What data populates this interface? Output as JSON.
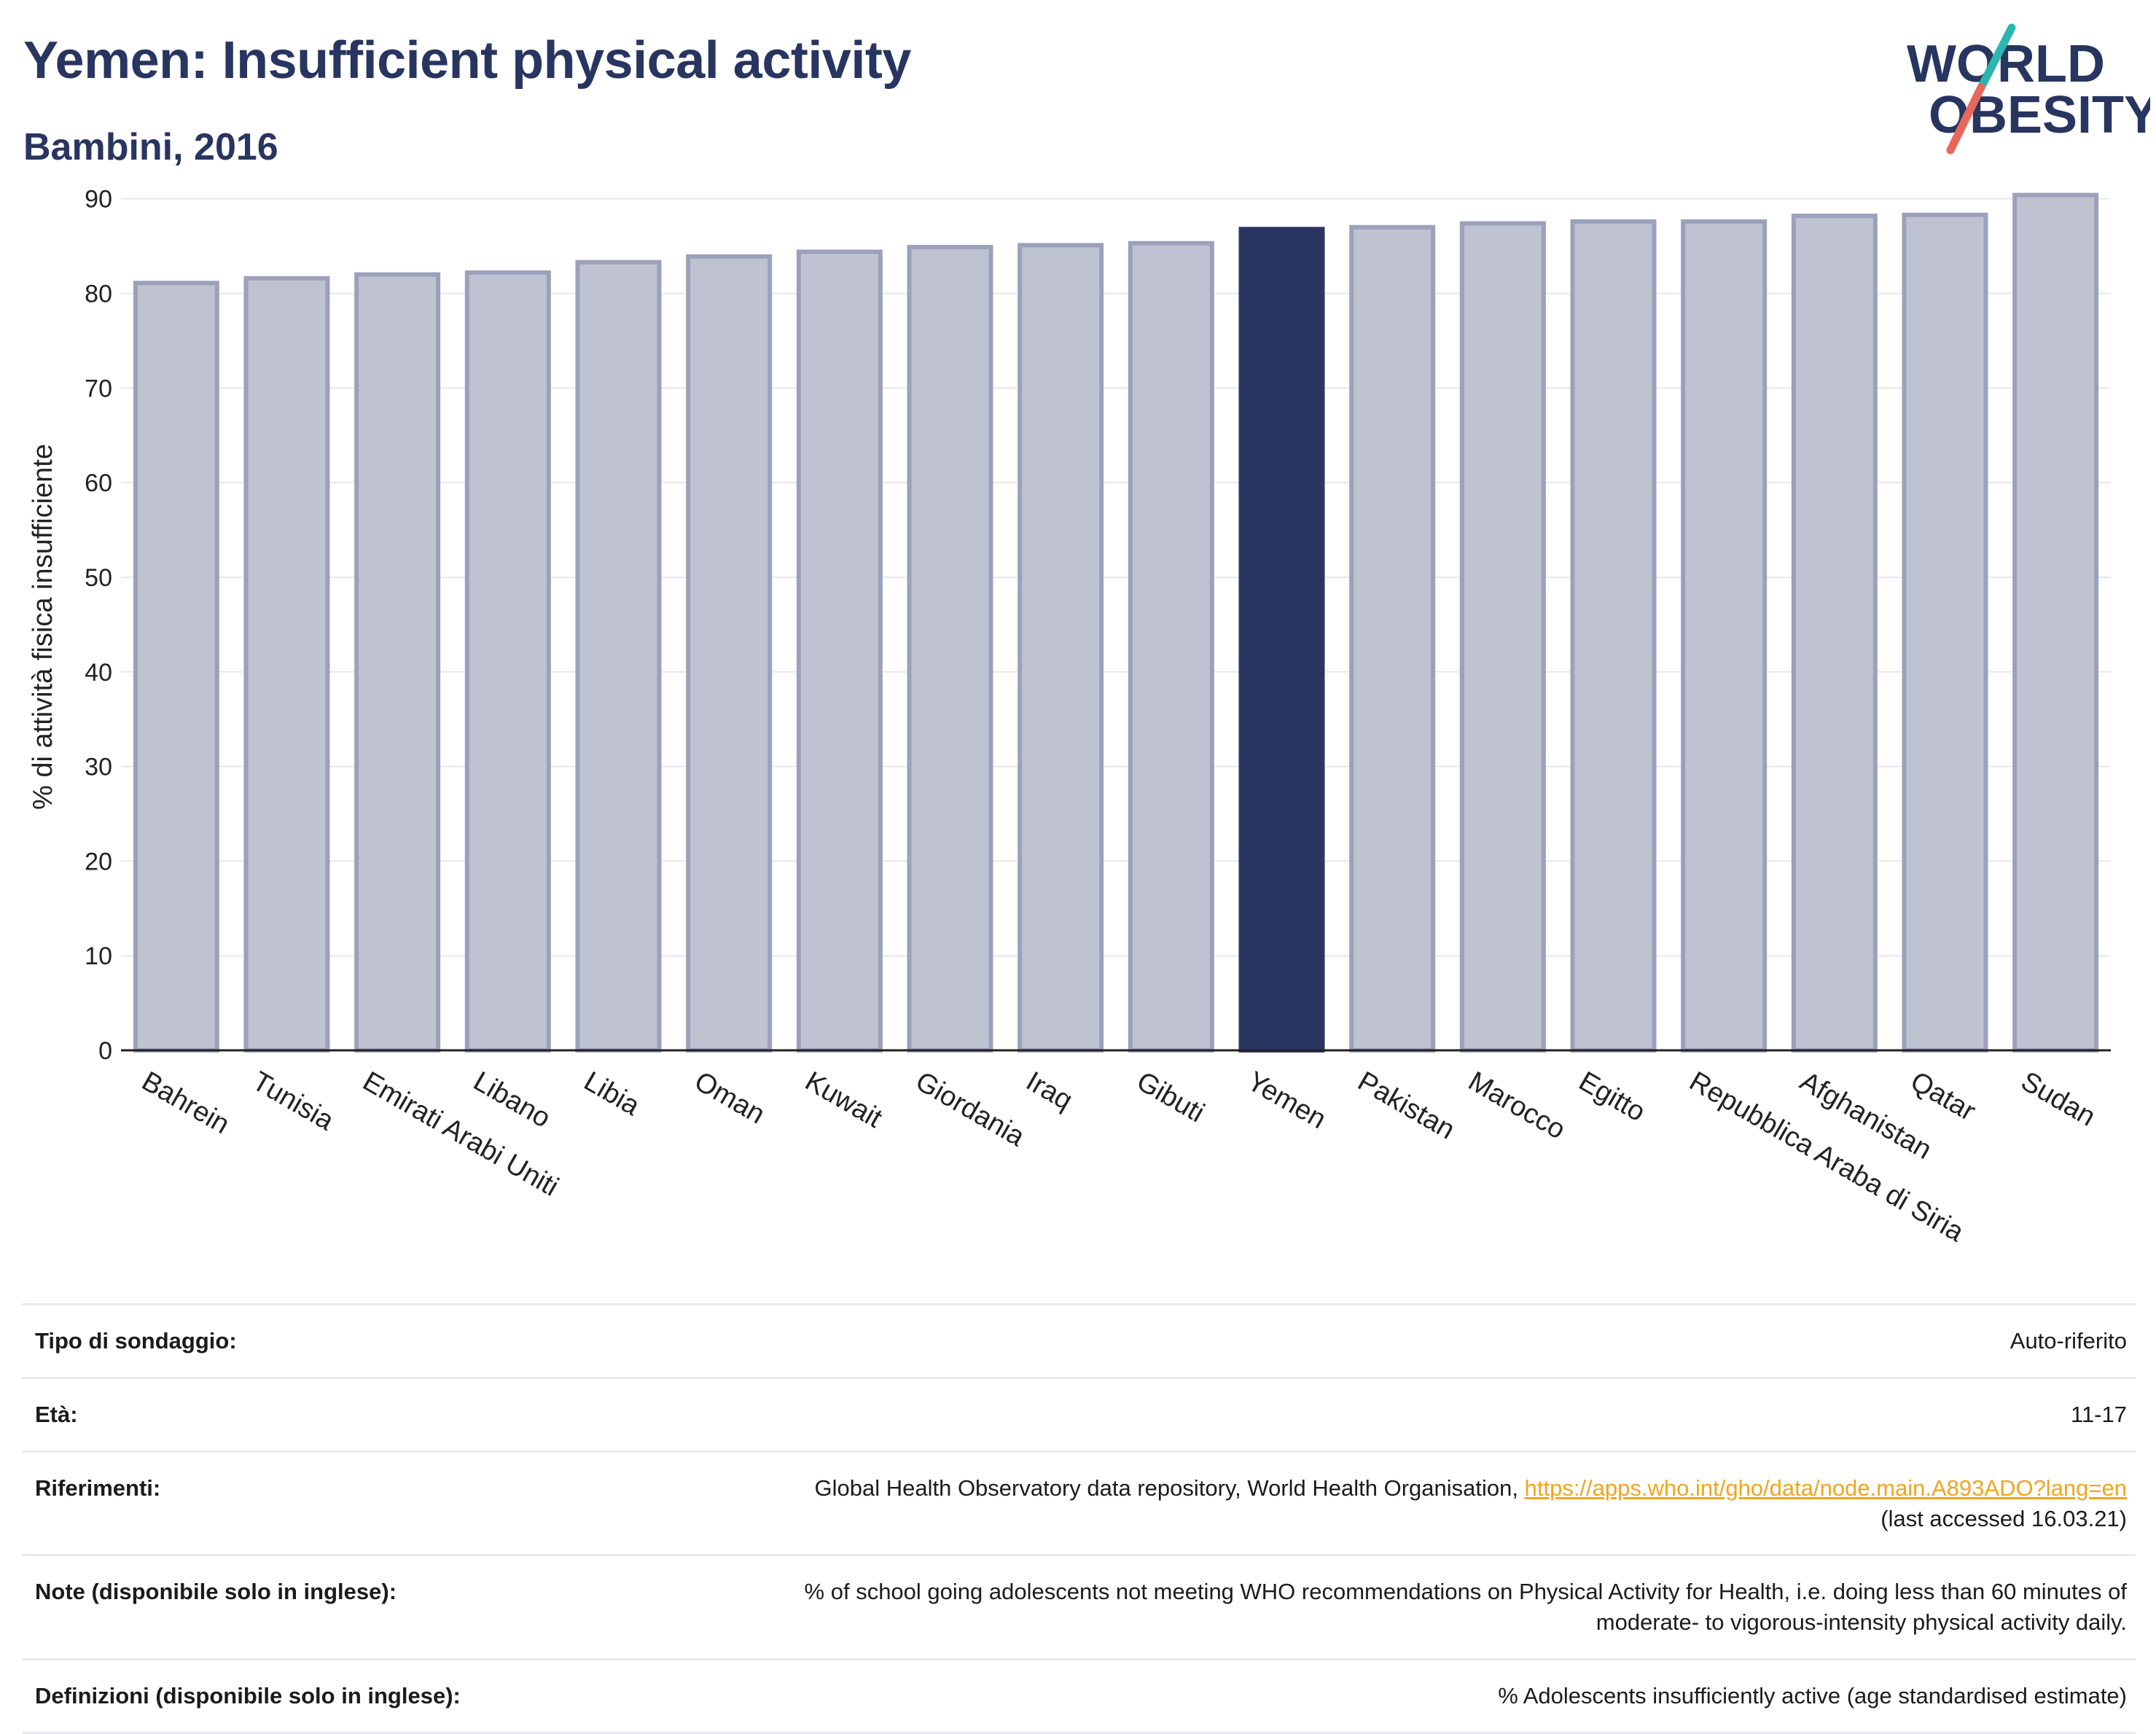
{
  "title": "Yemen: Insufficient physical activity",
  "subtitle": "Bambini, 2016",
  "logo": {
    "line1": "WORLD",
    "line2": "OBESITY",
    "colors": {
      "text": "#283560",
      "slash_top": "#2bb6b0",
      "slash_bottom": "#e8675a"
    }
  },
  "colors": {
    "bar": "#bfc2d0",
    "bar_border": "#9ba1ba",
    "highlight": "#2a3561",
    "grid": "#e6e8ee",
    "axis": "#222222",
    "text": "#283560"
  },
  "chart_data": {
    "type": "bar",
    "ylabel": "% di attività fisica insufficiente",
    "ylim": [
      0,
      90
    ],
    "yticks": [
      0,
      10,
      20,
      30,
      40,
      50,
      60,
      70,
      80,
      90
    ],
    "grid": true,
    "highlight": "Yemen",
    "categories": [
      "Bahrein",
      "Tunisia",
      "Emirati Arabi Uniti",
      "Libano",
      "Libia",
      "Oman",
      "Kuwait",
      "Giordania",
      "Iraq",
      "Gibuti",
      "Yemen",
      "Pakistan",
      "Marocco",
      "Egitto",
      "Repubblica Araba di Siria",
      "Afghanistan",
      "Qatar",
      "Sudan"
    ],
    "values": [
      81.1,
      81.6,
      82.0,
      82.2,
      83.3,
      83.9,
      84.4,
      84.9,
      85.1,
      85.3,
      86.8,
      87.0,
      87.4,
      87.6,
      87.6,
      88.2,
      88.3,
      90.4
    ]
  },
  "table": [
    {
      "key": "Tipo di sondaggio:",
      "value": "Auto-riferito"
    },
    {
      "key": "Età:",
      "value": "11-17"
    },
    {
      "key": "Riferimenti:",
      "value": "Global Health Observatory data repository, World Health Organisation,",
      "link": "https://apps.who.int/gho/data/node.main.A893ADO?lang=en",
      "value2": "(last accessed 16.03.21)"
    },
    {
      "key": "Note (disponibile solo in inglese):",
      "value": "% of school going adolescents not meeting WHO recommendations on Physical Activity for Health, i.e. doing less than 60 minutes of",
      "value2": "moderate- to vigorous-intensity physical activity daily."
    },
    {
      "key": "Definizioni (disponibile solo in inglese):",
      "value": "% Adolescents insufficiently active (age standardised estimate)"
    }
  ]
}
